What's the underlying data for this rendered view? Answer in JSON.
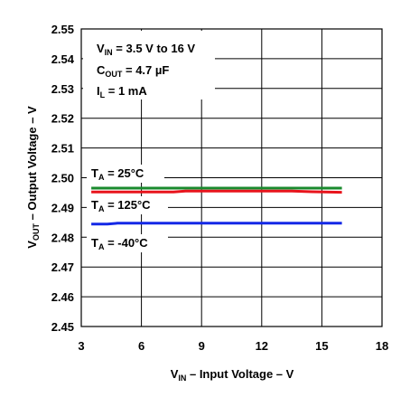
{
  "chart_data": {
    "type": "line",
    "xlabel_main": "V",
    "xlabel_sub": "IN",
    "xlabel_rest": " – Input Voltage – V",
    "ylabel_main": "V",
    "ylabel_sub": "OUT",
    "ylabel_rest": " – Output Voltage – V",
    "xlim": [
      3,
      18
    ],
    "ylim": [
      2.45,
      2.55
    ],
    "x_ticks": [
      "3",
      "6",
      "9",
      "12",
      "15",
      "18"
    ],
    "y_ticks": [
      "2.45",
      "2.46",
      "2.47",
      "2.48",
      "2.49",
      "2.50",
      "2.51",
      "2.52",
      "2.53",
      "2.54",
      "2.55"
    ],
    "grid": true,
    "conditions": {
      "vin": {
        "main": "V",
        "sub": "IN",
        "rest": " =  3.5 V to 16 V"
      },
      "cout": {
        "main": "C",
        "sub": "OUT",
        "rest": " = 4.7 µF"
      },
      "il": {
        "main": "I",
        "sub": "L",
        "rest": " = 1 mA"
      }
    },
    "series": [
      {
        "label_main": "T",
        "label_sub": "A",
        "label_rest": " = 25°C",
        "color": "#1a8a2e",
        "points": [
          [
            3.5,
            2.4965
          ],
          [
            16,
            2.4965
          ]
        ]
      },
      {
        "label_main": "T",
        "label_sub": "A",
        "label_rest": " = 125°C",
        "color": "#e8141c",
        "points": [
          [
            3.5,
            2.4952
          ],
          [
            7.6,
            2.4952
          ],
          [
            8.2,
            2.4955
          ],
          [
            13.5,
            2.4955
          ],
          [
            14.5,
            2.4953
          ],
          [
            16,
            2.4951
          ]
        ]
      },
      {
        "label_main": "T",
        "label_sub": "A",
        "label_rest": " = -40°C",
        "color": "#1428e6",
        "points": [
          [
            3.5,
            2.4844
          ],
          [
            4.3,
            2.4844
          ],
          [
            4.8,
            2.4847
          ],
          [
            16,
            2.4847
          ]
        ]
      }
    ]
  }
}
